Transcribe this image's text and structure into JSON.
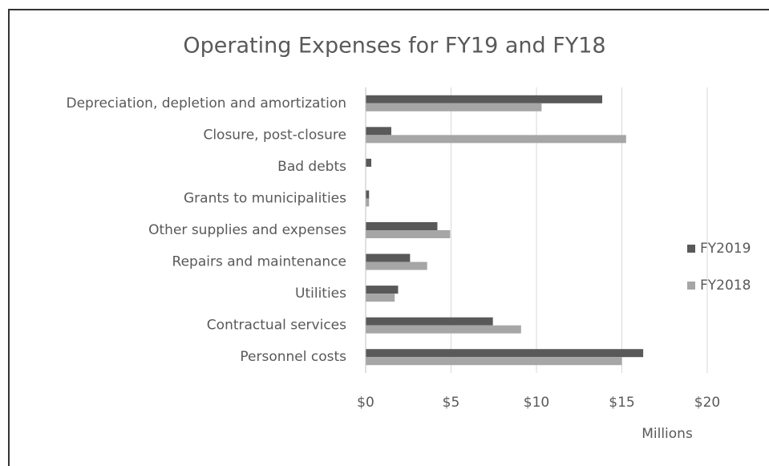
{
  "chart_data": {
    "type": "hbar",
    "title": "Operating Expenses for FY19 and FY18",
    "categories": [
      "Depreciation, depletion and amortization",
      "Closure, post-closure",
      "Bad debts",
      "Grants to municipalities",
      "Other supplies and expenses",
      "Repairs and maintenance",
      "Utilities",
      "Contractual services",
      "Personnel costs"
    ],
    "series": [
      {
        "name": "FY2019",
        "color": "#595959",
        "values": [
          13.85,
          1.5,
          0.33,
          0.2,
          4.2,
          2.6,
          1.9,
          7.45,
          16.25
        ]
      },
      {
        "name": "FY2018",
        "color": "#a6a6a6",
        "values": [
          10.3,
          15.25,
          0,
          0.2,
          4.95,
          3.6,
          1.7,
          9.1,
          15.0
        ]
      }
    ],
    "xlim": [
      0,
      22.5
    ],
    "xticks": [
      {
        "value": 0,
        "label": "$0"
      },
      {
        "value": 5,
        "label": "$5"
      },
      {
        "value": 10,
        "label": "$10"
      },
      {
        "value": 15,
        "label": "$15"
      },
      {
        "value": 20,
        "label": "$20"
      }
    ],
    "x_axis_label": "Millions",
    "grid": true,
    "legend": "right"
  }
}
